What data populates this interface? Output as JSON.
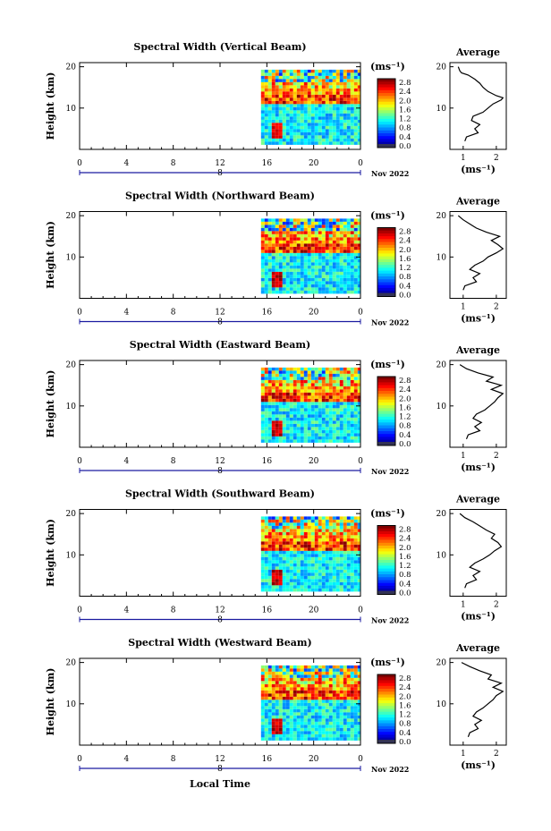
{
  "figure": {
    "xlabel": "Local Time",
    "date_label": "Nov 2022",
    "date_marker": "8",
    "colorbar_unit": "(ms⁻¹)",
    "average_title": "Average",
    "average_xlabel": "(ms⁻¹)"
  },
  "chart_data": [
    {
      "type": "heatmap",
      "title": "Spectral Width (Vertical Beam)",
      "xlabel": "Local Time",
      "ylabel": "Height (km)",
      "x_ticks": [
        "0",
        "4",
        "8",
        "12",
        "16",
        "20",
        "0"
      ],
      "xlim": [
        0,
        24
      ],
      "y_ticks": [
        "10",
        "20"
      ],
      "ylim": [
        0,
        21
      ],
      "data_start_hour": 15.5,
      "colorbar_ticks": [
        "2.8",
        "2.4",
        "2.0",
        "1.6",
        "1.2",
        "0.8",
        "0.4",
        "0.0"
      ],
      "colorbar_range": [
        0,
        3.0
      ],
      "average_profile": {
        "x_ticks": [
          "1",
          "2"
        ],
        "xlim": [
          0.6,
          2.3
        ],
        "points": [
          [
            1.05,
            2
          ],
          [
            1.1,
            3
          ],
          [
            1.45,
            4
          ],
          [
            1.35,
            5
          ],
          [
            1.5,
            6
          ],
          [
            1.25,
            7
          ],
          [
            1.3,
            8
          ],
          [
            1.6,
            9
          ],
          [
            1.75,
            10
          ],
          [
            1.9,
            11
          ],
          [
            2.15,
            12
          ],
          [
            2.2,
            12.5
          ],
          [
            2.0,
            13
          ],
          [
            1.75,
            14
          ],
          [
            1.6,
            15
          ],
          [
            1.5,
            16
          ],
          [
            1.35,
            17
          ],
          [
            1.15,
            18
          ],
          [
            0.95,
            18.5
          ],
          [
            0.9,
            19
          ],
          [
            0.85,
            20
          ]
        ]
      }
    },
    {
      "type": "heatmap",
      "title": "Spectral Width (Northward Beam)",
      "xlabel": "Local Time",
      "ylabel": "Height (km)",
      "x_ticks": [
        "0",
        "4",
        "8",
        "12",
        "16",
        "20",
        "0"
      ],
      "xlim": [
        0,
        24
      ],
      "y_ticks": [
        "10",
        "20"
      ],
      "ylim": [
        0,
        21
      ],
      "data_start_hour": 15.5,
      "colorbar_ticks": [
        "2.8",
        "2.4",
        "2.0",
        "1.6",
        "1.2",
        "0.8",
        "0.4",
        "0.0"
      ],
      "colorbar_range": [
        0,
        3.0
      ],
      "average_profile": {
        "x_ticks": [
          "1",
          "2"
        ],
        "xlim": [
          0.6,
          2.3
        ],
        "points": [
          [
            1.0,
            2
          ],
          [
            1.05,
            3
          ],
          [
            1.4,
            4
          ],
          [
            1.3,
            5
          ],
          [
            1.5,
            6
          ],
          [
            1.2,
            7
          ],
          [
            1.35,
            8
          ],
          [
            1.6,
            9
          ],
          [
            1.75,
            10
          ],
          [
            2.0,
            11
          ],
          [
            2.2,
            12
          ],
          [
            2.05,
            13
          ],
          [
            1.85,
            14
          ],
          [
            2.1,
            15
          ],
          [
            1.7,
            16
          ],
          [
            1.4,
            17
          ],
          [
            1.2,
            18
          ],
          [
            1.0,
            19
          ],
          [
            0.85,
            20
          ]
        ]
      }
    },
    {
      "type": "heatmap",
      "title": "Spectral Width (Eastward Beam)",
      "xlabel": "Local Time",
      "ylabel": "Height (km)",
      "x_ticks": [
        "0",
        "4",
        "8",
        "12",
        "16",
        "20",
        "0"
      ],
      "xlim": [
        0,
        24
      ],
      "y_ticks": [
        "10",
        "20"
      ],
      "ylim": [
        0,
        21
      ],
      "data_start_hour": 15.5,
      "colorbar_ticks": [
        "2.8",
        "2.4",
        "2.0",
        "1.6",
        "1.2",
        "0.8",
        "0.4",
        "0.0"
      ],
      "colorbar_range": [
        0,
        3.0
      ],
      "average_profile": {
        "x_ticks": [
          "1",
          "2"
        ],
        "xlim": [
          0.6,
          2.3
        ],
        "points": [
          [
            1.1,
            2
          ],
          [
            1.15,
            3
          ],
          [
            1.5,
            4
          ],
          [
            1.35,
            5
          ],
          [
            1.55,
            6
          ],
          [
            1.3,
            7
          ],
          [
            1.4,
            8
          ],
          [
            1.65,
            9
          ],
          [
            1.8,
            10
          ],
          [
            1.95,
            11
          ],
          [
            2.05,
            12
          ],
          [
            2.2,
            13
          ],
          [
            1.85,
            14
          ],
          [
            2.15,
            15
          ],
          [
            1.7,
            16
          ],
          [
            1.9,
            17
          ],
          [
            1.45,
            18
          ],
          [
            1.1,
            19
          ],
          [
            0.9,
            20
          ]
        ]
      }
    },
    {
      "type": "heatmap",
      "title": "Spectral Width (Southward Beam)",
      "xlabel": "Local Time",
      "ylabel": "Height (km)",
      "x_ticks": [
        "0",
        "4",
        "8",
        "12",
        "16",
        "20",
        "0"
      ],
      "xlim": [
        0,
        24
      ],
      "y_ticks": [
        "10",
        "20"
      ],
      "ylim": [
        0,
        21
      ],
      "data_start_hour": 15.5,
      "colorbar_ticks": [
        "2.8",
        "2.4",
        "2.0",
        "1.6",
        "1.2",
        "0.8",
        "0.4",
        "0.0"
      ],
      "colorbar_range": [
        0,
        3.0
      ],
      "average_profile": {
        "x_ticks": [
          "1",
          "2"
        ],
        "xlim": [
          0.6,
          2.3
        ],
        "points": [
          [
            1.05,
            2
          ],
          [
            1.1,
            3
          ],
          [
            1.4,
            4
          ],
          [
            1.3,
            5
          ],
          [
            1.5,
            6
          ],
          [
            1.2,
            7
          ],
          [
            1.35,
            8
          ],
          [
            1.6,
            9
          ],
          [
            1.8,
            10
          ],
          [
            1.95,
            11
          ],
          [
            2.15,
            12
          ],
          [
            2.05,
            13
          ],
          [
            1.85,
            14
          ],
          [
            1.95,
            15
          ],
          [
            1.7,
            16
          ],
          [
            1.5,
            17
          ],
          [
            1.3,
            18
          ],
          [
            1.05,
            19
          ],
          [
            0.9,
            20
          ]
        ]
      }
    },
    {
      "type": "heatmap",
      "title": "Spectral Width (Westward Beam)",
      "xlabel": "Local Time",
      "ylabel": "Height (km)",
      "x_ticks": [
        "0",
        "4",
        "8",
        "12",
        "16",
        "20",
        "0"
      ],
      "xlim": [
        0,
        24
      ],
      "y_ticks": [
        "10",
        "20"
      ],
      "ylim": [
        0,
        21
      ],
      "data_start_hour": 15.5,
      "colorbar_ticks": [
        "2.8",
        "2.4",
        "2.0",
        "1.6",
        "1.2",
        "0.8",
        "0.4",
        "0.0"
      ],
      "colorbar_range": [
        0,
        3.0
      ],
      "average_profile": {
        "x_ticks": [
          "1",
          "2"
        ],
        "xlim": [
          0.6,
          2.3
        ],
        "points": [
          [
            1.15,
            2
          ],
          [
            1.2,
            3
          ],
          [
            1.45,
            4
          ],
          [
            1.35,
            5
          ],
          [
            1.55,
            6
          ],
          [
            1.3,
            7
          ],
          [
            1.4,
            8
          ],
          [
            1.6,
            9
          ],
          [
            1.75,
            10
          ],
          [
            1.9,
            11
          ],
          [
            2.0,
            12
          ],
          [
            2.2,
            13
          ],
          [
            1.9,
            14
          ],
          [
            2.15,
            15
          ],
          [
            1.75,
            16
          ],
          [
            1.85,
            17
          ],
          [
            1.5,
            18
          ],
          [
            1.2,
            19
          ],
          [
            0.95,
            20
          ]
        ]
      }
    }
  ]
}
